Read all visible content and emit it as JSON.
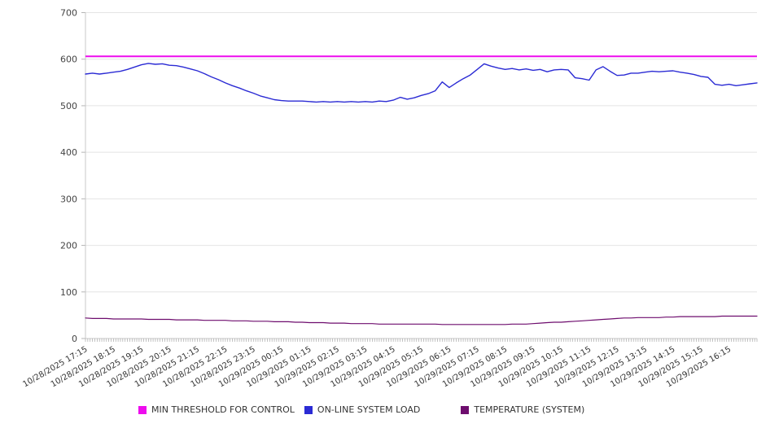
{
  "chart_data": {
    "type": "line",
    "title": "",
    "xlabel": "",
    "ylabel": "",
    "ylim": [
      0,
      700
    ],
    "yticks": [
      0,
      100,
      200,
      300,
      400,
      500,
      600,
      700
    ],
    "grid": "horizontal-only",
    "legend_position": "bottom",
    "x_minor_tick_count": 289,
    "points_per_label_interval": 4,
    "x_labels": [
      "10/28/2025 17:15",
      "10/28/2025 18:15",
      "10/28/2025 19:15",
      "10/28/2025 20:15",
      "10/28/2025 21:15",
      "10/28/2025 22:15",
      "10/28/2025 23:15",
      "10/29/2025 00:15",
      "10/29/2025 01:15",
      "10/29/2025 02:15",
      "10/29/2025 03:15",
      "10/29/2025 04:15",
      "10/29/2025 05:15",
      "10/29/2025 06:15",
      "10/29/2025 07:15",
      "10/29/2025 08:15",
      "10/29/2025 09:15",
      "10/29/2025 10:15",
      "10/29/2025 11:15",
      "10/29/2025 12:15",
      "10/29/2025 13:15",
      "10/29/2025 14:15",
      "10/29/2025 15:15",
      "10/29/2025 16:15"
    ],
    "series": [
      {
        "name": "MIN THRESHOLD FOR CONTROL",
        "color": "#ee0cee",
        "line_width": 2,
        "constant": 606
      },
      {
        "name": "ON-LINE SYSTEM LOAD",
        "color": "#2b2bd4",
        "line_width": 1.4,
        "values": [
          568,
          570,
          568,
          570,
          572,
          574,
          578,
          583,
          588,
          591,
          589,
          590,
          587,
          586,
          583,
          579,
          575,
          569,
          562,
          556,
          549,
          543,
          538,
          532,
          527,
          521,
          517,
          513,
          511,
          510,
          510,
          510,
          509,
          508,
          509,
          508,
          509,
          508,
          509,
          508,
          509,
          508,
          510,
          509,
          512,
          518,
          514,
          517,
          522,
          526,
          532,
          551,
          539,
          549,
          558,
          566,
          578,
          590,
          585,
          581,
          578,
          580,
          577,
          579,
          576,
          578,
          573,
          577,
          578,
          577,
          560,
          558,
          555,
          577,
          584,
          574,
          565,
          566,
          570,
          570,
          572,
          574,
          573,
          574,
          575,
          572,
          570,
          567,
          563,
          561,
          546,
          544,
          546,
          543,
          545,
          547,
          549
        ]
      },
      {
        "name": "TEMPERATURE (SYSTEM)",
        "color": "#6e0d6e",
        "line_width": 1.2,
        "values": [
          44,
          43,
          43,
          43,
          42,
          42,
          42,
          42,
          42,
          41,
          41,
          41,
          41,
          40,
          40,
          40,
          40,
          39,
          39,
          39,
          39,
          38,
          38,
          38,
          37,
          37,
          37,
          36,
          36,
          36,
          35,
          35,
          34,
          34,
          34,
          33,
          33,
          33,
          32,
          32,
          32,
          32,
          31,
          31,
          31,
          31,
          31,
          31,
          31,
          31,
          31,
          30,
          30,
          30,
          30,
          30,
          30,
          30,
          30,
          30,
          30,
          31,
          31,
          31,
          32,
          33,
          34,
          35,
          35,
          36,
          37,
          38,
          39,
          40,
          41,
          42,
          43,
          44,
          44,
          45,
          45,
          45,
          45,
          46,
          46,
          47,
          47,
          47,
          47,
          47,
          47,
          48,
          48,
          48,
          48,
          48,
          48
        ]
      }
    ]
  }
}
